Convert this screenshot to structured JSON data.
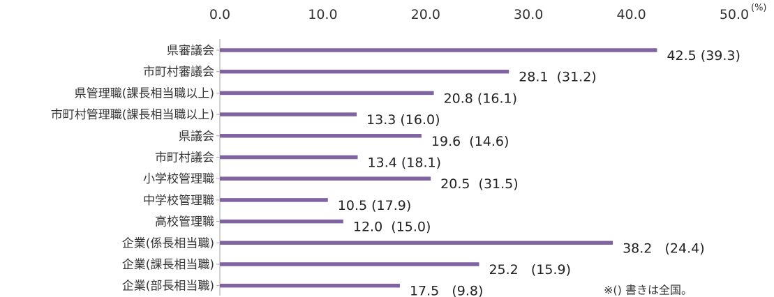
{
  "chart_data": {
    "type": "bar",
    "orientation": "horizontal",
    "title": "",
    "xlabel": "",
    "ylabel": "",
    "unit": "(%)",
    "xlim": [
      0,
      50
    ],
    "ticks": [
      0,
      10,
      20,
      30,
      40,
      50
    ],
    "tick_labels": [
      "0.0",
      "10.0",
      "20.0",
      "30.0",
      "40.0",
      "50.0"
    ],
    "grid": false,
    "bar_color": "#8064a2",
    "axis_color": "#a6a6a6",
    "categories": [
      "県審議会",
      "市町村審議会",
      "県管理職(課長相当職以上)",
      "市町村管理職(課長相当職以上)",
      "県議会",
      "市町村議会",
      "小学校管理職",
      "中学校管理職",
      "高校管理職",
      "企業(係長相当職)",
      "企業(課長相当職)",
      "企業(部長相当職)"
    ],
    "values": [
      42.5,
      28.1,
      20.8,
      13.3,
      19.6,
      13.4,
      20.5,
      10.5,
      12.0,
      38.2,
      25.2,
      17.5
    ],
    "national_values": [
      39.3,
      31.2,
      16.1,
      16.0,
      14.6,
      18.1,
      31.5,
      17.9,
      15.0,
      24.4,
      15.9,
      9.8
    ],
    "value_labels": [
      "42.5 (39.3)",
      "28.1  (31.2)",
      "20.8 (16.1)",
      "13.3 (16.0)",
      "19.6  (14.6)",
      "13.4 (18.1)",
      "20.5  (31.5)",
      "10.5 (17.9)",
      "12.0  (15.0)",
      "38.2   (24.4)",
      "25.2   (15.9)",
      "17.5   (9.8)"
    ],
    "note": "※() 書きは全国。"
  }
}
